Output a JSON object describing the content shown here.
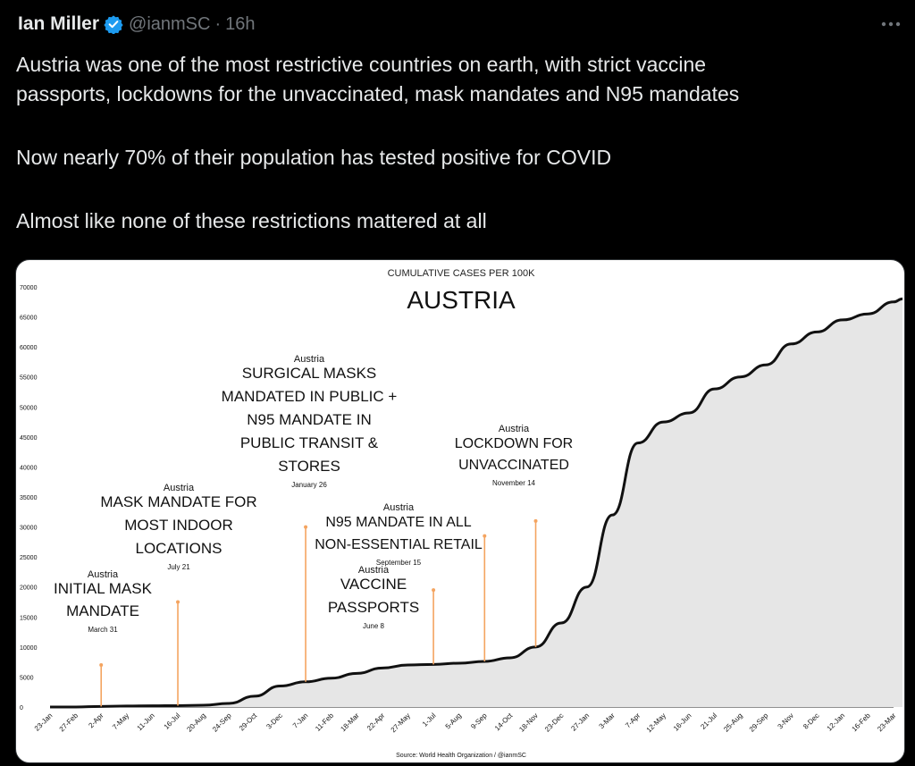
{
  "post": {
    "author_name": "Ian Miller",
    "handle": "@ianmSC",
    "separator": "·",
    "time": "16h",
    "lines": [
      "Austria was one of the most restrictive countries on earth, with strict vaccine",
      "passports, lockdowns for the unvaccinated, mask mandates and N95 mandates",
      "Now nearly 70% of their population has tested positive for COVID",
      "Almost like none of these restrictions mattered at all"
    ],
    "verified_icon": "verified-badge-icon",
    "more_icon": "more-options-icon"
  },
  "colors": {
    "accent": "#1d9bf0",
    "muted": "#71767b",
    "annotation_line": "#f4a460"
  },
  "chart_data": {
    "type": "area",
    "supertitle": "CUMULATIVE CASES PER 100K",
    "title": "AUSTRIA",
    "source": "Source: World Health Organization / @ianmSC",
    "ylim": [
      0,
      70000
    ],
    "yticks": [
      "0",
      "5000",
      "10000",
      "15000",
      "20000",
      "25000",
      "30000",
      "35000",
      "40000",
      "45000",
      "50000",
      "55000",
      "60000",
      "65000",
      "70000"
    ],
    "xticks": [
      "23-Jan",
      "27-Feb",
      "2-Apr",
      "7-May",
      "11-Jun",
      "16-Jul",
      "20-Aug",
      "24-Sep",
      "29-Oct",
      "3-Dec",
      "7-Jan",
      "11-Feb",
      "18-Mar",
      "22-Apr",
      "27-May",
      "1-Jul",
      "5-Aug",
      "9-Sep",
      "14-Oct",
      "18-Nov",
      "23-Dec",
      "27-Jan",
      "3-Mar",
      "7-Apr",
      "12-May",
      "16-Jun",
      "21-Jul",
      "25-Aug",
      "29-Sep",
      "3-Nov",
      "8-Dec",
      "12-Jan",
      "16-Feb",
      "23-Mar"
    ],
    "series": [
      {
        "x": [
          "23-Jan",
          "27-Feb",
          "2-Apr",
          "7-May",
          "11-Jun",
          "16-Jul",
          "20-Aug",
          "24-Sep",
          "29-Oct",
          "3-Dec",
          "7-Jan",
          "11-Feb",
          "18-Mar",
          "22-Apr",
          "27-May",
          "1-Jul",
          "5-Aug",
          "9-Sep",
          "14-Oct",
          "18-Nov",
          "23-Dec",
          "27-Jan",
          "3-Mar",
          "7-Apr",
          "12-May",
          "16-Jun",
          "21-Jul",
          "25-Aug",
          "29-Sep",
          "3-Nov",
          "8-Dec",
          "12-Jan",
          "16-Feb",
          "23-Mar",
          "30-Mar"
        ],
        "values": [
          0,
          0,
          100,
          170,
          200,
          230,
          300,
          600,
          1800,
          3500,
          4200,
          4800,
          5600,
          6500,
          7000,
          7100,
          7300,
          7600,
          8200,
          10000,
          14000,
          20000,
          32000,
          44000,
          47500,
          49000,
          53000,
          55000,
          57000,
          60500,
          62500,
          64500,
          65500,
          67500,
          68000
        ]
      }
    ],
    "annotations": [
      {
        "country": "Austria",
        "lines": [
          "INITIAL MASK",
          "MANDATE"
        ],
        "date": "March 31",
        "x": "2-Apr",
        "top": 7000
      },
      {
        "country": "Austria",
        "lines": [
          "MASK MANDATE FOR",
          "MOST INDOOR",
          "LOCATIONS"
        ],
        "date": "July 21",
        "x": "16-Jul",
        "top": 17500
      },
      {
        "country": "Austria",
        "lines": [
          "SURGICAL MASKS",
          "MANDATED IN PUBLIC +",
          "N95 MANDATE IN",
          "PUBLIC TRANSIT &",
          "STORES"
        ],
        "date": "January 26",
        "x": "7-Jan",
        "top": 30000
      },
      {
        "country": "Austria",
        "lines": [
          "VACCINE",
          "PASSPORTS"
        ],
        "date": "June 8",
        "x": "1-Jul",
        "top": 19500
      },
      {
        "country": "Austria",
        "lines": [
          "N95 MANDATE IN ALL",
          "NON-ESSENTIAL RETAIL"
        ],
        "date": "September 15",
        "x": "9-Sep",
        "top": 28500
      },
      {
        "country": "Austria",
        "lines": [
          "LOCKDOWN FOR",
          "UNVACCINATED"
        ],
        "date": "November 14",
        "x": "18-Nov",
        "top": 31000
      }
    ]
  }
}
